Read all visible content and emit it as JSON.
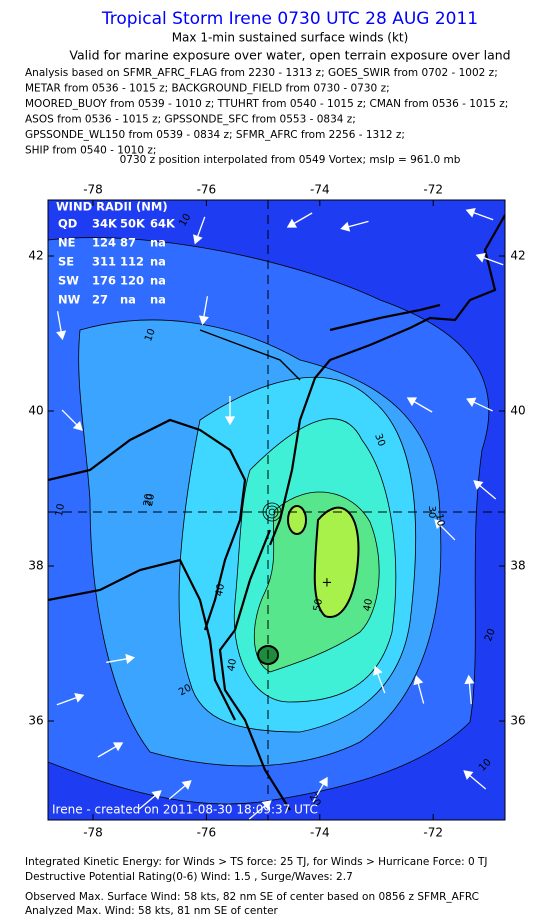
{
  "header": {
    "title": "Tropical Storm Irene 0730 UTC 28 AUG 2011",
    "subtitle": "Max 1-min sustained surface winds (kt)",
    "validity": "Valid for marine exposure over water, open terrain exposure over land",
    "analysis_lines": [
      "Analysis based on SFMR_AFRC_FLAG from 2230 - 1313 z; GOES_SWIR from 0702 - 1002 z;",
      "METAR from 0536 - 1015 z; BACKGROUND_FIELD from 0730 - 0730 z;",
      "MOORED_BUOY from 0539 - 1010 z; TTUHRT from 0540 - 1015 z; CMAN from 0536 - 1015 z;",
      "ASOS from 0536 - 1015 z; GPSSONDE_SFC from 0553 - 0834 z;",
      "GPSSONDE_WL150 from 0539 - 0834 z; SFMR_AFRC from 2256 - 1312 z;",
      "SHIP from 0540 - 1010 z;"
    ],
    "position_note": "0730 z position interpolated from 0549 Vortex; mslp = 961.0 mb"
  },
  "map": {
    "xticks": [
      -78,
      -76,
      -74,
      -72
    ],
    "yticks": [
      42,
      40,
      38,
      36
    ],
    "wind_radii": {
      "title": "WIND RADII (NM)",
      "header": [
        "QD",
        "34K",
        "50K",
        "64K"
      ],
      "rows": [
        [
          "NE",
          "124",
          "87",
          "na"
        ],
        [
          "SE",
          "311",
          "112",
          "na"
        ],
        [
          "SW",
          "176",
          "120",
          "na"
        ],
        [
          "NW",
          "27",
          "na",
          "na"
        ]
      ]
    },
    "contour_labels": [
      10,
      10,
      10,
      10,
      20,
      20,
      20,
      20,
      30,
      30,
      40,
      40,
      40,
      50,
      20,
      10
    ],
    "credit": "Irene - created on 2011-08-30 18:09:37 UTC"
  },
  "footer": {
    "lines": [
      "Integrated Kinetic Energy:  for Winds > TS force: 25 TJ,  for Winds > Hurricane Force: 0 TJ",
      "Destructive Potential Rating(0-6)   Wind: 1.5 , Surge/Waves: 2.7",
      "Observed Max. Surface Wind: 58 kts, 82 nm SE of center based on 0856 z SFMR_AFRC",
      "Analyzed Max. Wind: 58 kts, 81 nm SE of center"
    ]
  }
}
